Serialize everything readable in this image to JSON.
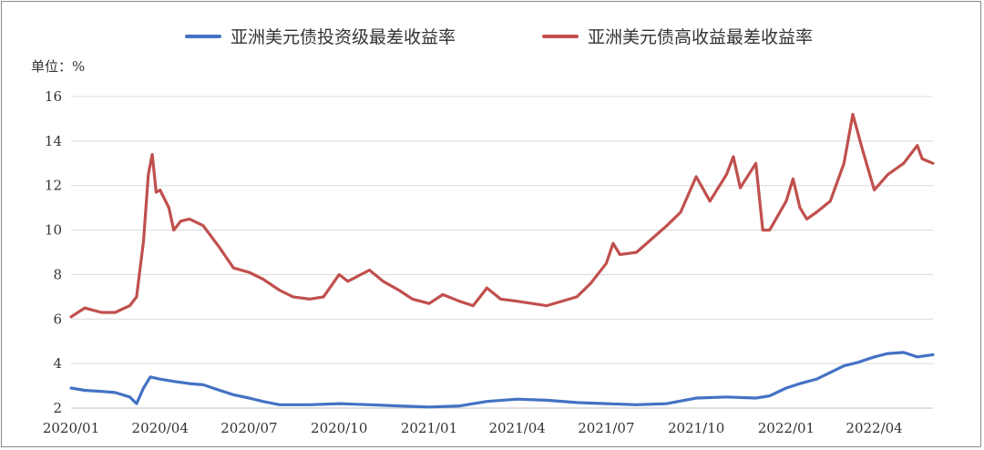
{
  "chart_data": {
    "type": "line",
    "unit_label": "单位：%",
    "ylim": [
      2,
      16
    ],
    "y_ticks": [
      "2",
      "4",
      "6",
      "8",
      "10",
      "12",
      "14",
      "16"
    ],
    "x_ticks": [
      "2020/01",
      "2020/04",
      "2020/07",
      "2020/10",
      "2021/01",
      "2021/04",
      "2021/07",
      "2021/10",
      "2022/01",
      "2022/04"
    ],
    "x_range": [
      "2020-01-01",
      "2022-05-31"
    ],
    "grid": true,
    "legend_position": "top",
    "colors": {
      "ig": "#4472c4",
      "hy": "#c0504d",
      "grid": "#d9d9d9"
    },
    "series": [
      {
        "name": "亚洲美元债投资级最差收益率",
        "color": "#4472c4",
        "points": [
          [
            "2020-01-01",
            2.9
          ],
          [
            "2020-01-15",
            2.8
          ],
          [
            "2020-02-01",
            2.75
          ],
          [
            "2020-02-15",
            2.7
          ],
          [
            "2020-03-01",
            2.5
          ],
          [
            "2020-03-08",
            2.2
          ],
          [
            "2020-03-15",
            2.9
          ],
          [
            "2020-03-22",
            3.4
          ],
          [
            "2020-04-01",
            3.3
          ],
          [
            "2020-04-15",
            3.2
          ],
          [
            "2020-05-01",
            3.1
          ],
          [
            "2020-05-15",
            3.05
          ],
          [
            "2020-06-01",
            2.8
          ],
          [
            "2020-06-15",
            2.6
          ],
          [
            "2020-07-01",
            2.45
          ],
          [
            "2020-07-15",
            2.3
          ],
          [
            "2020-08-01",
            2.15
          ],
          [
            "2020-09-01",
            2.15
          ],
          [
            "2020-10-01",
            2.2
          ],
          [
            "2020-11-01",
            2.15
          ],
          [
            "2020-12-01",
            2.1
          ],
          [
            "2021-01-01",
            2.05
          ],
          [
            "2021-02-01",
            2.1
          ],
          [
            "2021-03-01",
            2.3
          ],
          [
            "2021-04-01",
            2.4
          ],
          [
            "2021-05-01",
            2.35
          ],
          [
            "2021-06-01",
            2.25
          ],
          [
            "2021-07-01",
            2.2
          ],
          [
            "2021-08-01",
            2.15
          ],
          [
            "2021-09-01",
            2.2
          ],
          [
            "2021-10-01",
            2.45
          ],
          [
            "2021-11-01",
            2.5
          ],
          [
            "2021-12-01",
            2.45
          ],
          [
            "2021-12-15",
            2.55
          ],
          [
            "2022-01-01",
            2.9
          ],
          [
            "2022-01-15",
            3.1
          ],
          [
            "2022-02-01",
            3.3
          ],
          [
            "2022-02-15",
            3.6
          ],
          [
            "2022-03-01",
            3.9
          ],
          [
            "2022-03-15",
            4.05
          ],
          [
            "2022-04-01",
            4.3
          ],
          [
            "2022-04-15",
            4.45
          ],
          [
            "2022-05-01",
            4.5
          ],
          [
            "2022-05-15",
            4.3
          ],
          [
            "2022-05-31",
            4.4
          ]
        ]
      },
      {
        "name": "亚洲美元债高收益最差收益率",
        "color": "#c0504d",
        "points": [
          [
            "2020-01-01",
            6.1
          ],
          [
            "2020-01-15",
            6.5
          ],
          [
            "2020-02-01",
            6.3
          ],
          [
            "2020-02-15",
            6.3
          ],
          [
            "2020-03-01",
            6.6
          ],
          [
            "2020-03-08",
            7.0
          ],
          [
            "2020-03-15",
            9.5
          ],
          [
            "2020-03-20",
            12.5
          ],
          [
            "2020-03-24",
            13.4
          ],
          [
            "2020-03-28",
            11.7
          ],
          [
            "2020-04-01",
            11.8
          ],
          [
            "2020-04-10",
            11.0
          ],
          [
            "2020-04-15",
            10.0
          ],
          [
            "2020-04-22",
            10.4
          ],
          [
            "2020-05-01",
            10.5
          ],
          [
            "2020-05-15",
            10.2
          ],
          [
            "2020-06-01",
            9.2
          ],
          [
            "2020-06-15",
            8.3
          ],
          [
            "2020-07-01",
            8.1
          ],
          [
            "2020-07-15",
            7.8
          ],
          [
            "2020-08-01",
            7.3
          ],
          [
            "2020-08-15",
            7.0
          ],
          [
            "2020-09-01",
            6.9
          ],
          [
            "2020-09-15",
            7.0
          ],
          [
            "2020-10-01",
            8.0
          ],
          [
            "2020-10-10",
            7.7
          ],
          [
            "2020-11-01",
            8.2
          ],
          [
            "2020-11-15",
            7.7
          ],
          [
            "2020-12-01",
            7.3
          ],
          [
            "2020-12-15",
            6.9
          ],
          [
            "2021-01-01",
            6.7
          ],
          [
            "2021-01-15",
            7.1
          ],
          [
            "2021-02-01",
            6.8
          ],
          [
            "2021-02-15",
            6.6
          ],
          [
            "2021-03-01",
            7.4
          ],
          [
            "2021-03-15",
            6.9
          ],
          [
            "2021-04-01",
            6.8
          ],
          [
            "2021-05-01",
            6.6
          ],
          [
            "2021-06-01",
            7.0
          ],
          [
            "2021-06-15",
            7.6
          ],
          [
            "2021-07-01",
            8.5
          ],
          [
            "2021-07-08",
            9.4
          ],
          [
            "2021-07-15",
            8.9
          ],
          [
            "2021-08-01",
            9.0
          ],
          [
            "2021-09-01",
            10.2
          ],
          [
            "2021-09-15",
            10.8
          ],
          [
            "2021-10-01",
            12.4
          ],
          [
            "2021-10-15",
            11.3
          ],
          [
            "2021-11-01",
            12.5
          ],
          [
            "2021-11-08",
            13.3
          ],
          [
            "2021-11-15",
            11.9
          ],
          [
            "2021-12-01",
            13.0
          ],
          [
            "2021-12-08",
            10.0
          ],
          [
            "2021-12-15",
            10.0
          ],
          [
            "2022-01-01",
            11.3
          ],
          [
            "2022-01-08",
            12.3
          ],
          [
            "2022-01-15",
            11.0
          ],
          [
            "2022-01-22",
            10.5
          ],
          [
            "2022-02-01",
            10.8
          ],
          [
            "2022-02-15",
            11.3
          ],
          [
            "2022-03-01",
            13.0
          ],
          [
            "2022-03-10",
            15.2
          ],
          [
            "2022-03-20",
            13.6
          ],
          [
            "2022-04-01",
            11.8
          ],
          [
            "2022-04-15",
            12.5
          ],
          [
            "2022-05-01",
            13.0
          ],
          [
            "2022-05-15",
            13.8
          ],
          [
            "2022-05-20",
            13.2
          ],
          [
            "2022-05-31",
            13.0
          ]
        ]
      }
    ]
  }
}
